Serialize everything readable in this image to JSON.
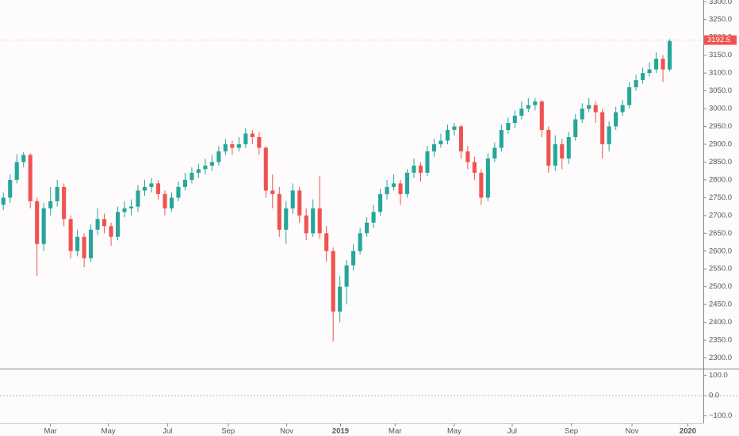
{
  "chart_data": [
    {
      "type": "candlestick",
      "x": [
        0,
        1,
        2,
        3,
        4,
        5,
        6,
        7,
        8,
        9,
        10,
        11,
        12,
        13,
        14,
        15,
        16,
        17,
        18,
        19,
        20,
        21,
        22,
        23,
        24,
        25,
        26,
        27,
        28,
        29,
        30,
        31,
        32,
        33,
        34,
        35,
        36,
        37,
        38,
        39,
        40,
        41,
        42,
        43,
        44,
        45,
        46,
        47,
        48,
        49,
        50,
        51,
        52,
        53,
        54,
        55,
        56,
        57,
        58,
        59,
        60,
        61,
        62,
        63,
        64,
        65,
        66,
        67,
        68,
        69,
        70,
        71,
        72,
        73,
        74,
        75,
        76,
        77,
        78,
        79,
        80,
        81,
        82,
        83,
        84,
        85,
        86,
        87,
        88,
        89,
        90,
        91,
        92,
        93,
        94,
        95,
        96,
        97,
        98,
        99
      ],
      "open": [
        2730,
        2750,
        2800,
        2850,
        2870,
        2740,
        2620,
        2720,
        2740,
        2780,
        2690,
        2600,
        2640,
        2580,
        2660,
        2690,
        2670,
        2640,
        2710,
        2720,
        2725,
        2770,
        2780,
        2790,
        2760,
        2720,
        2750,
        2780,
        2800,
        2820,
        2830,
        2840,
        2850,
        2880,
        2900,
        2890,
        2900,
        2930,
        2920,
        2890,
        2770,
        2760,
        2660,
        2720,
        2770,
        2700,
        2650,
        2720,
        2650,
        2600,
        2430,
        2500,
        2560,
        2600,
        2650,
        2680,
        2710,
        2760,
        2780,
        2790,
        2760,
        2820,
        2840,
        2820,
        2880,
        2900,
        2910,
        2940,
        2950,
        2880,
        2850,
        2820,
        2750,
        2860,
        2890,
        2940,
        2960,
        2980,
        3000,
        3010,
        3020,
        2940,
        2840,
        2900,
        2860,
        2920,
        2970,
        3000,
        3010,
        2990,
        2900,
        2950,
        2990,
        3010,
        3060,
        3080,
        3100,
        3110,
        3140,
        3110
      ],
      "high": [
        2765,
        2815,
        2872,
        2878,
        2875,
        2750,
        2735,
        2780,
        2800,
        2790,
        2700,
        2660,
        2650,
        2675,
        2720,
        2705,
        2680,
        2725,
        2740,
        2745,
        2785,
        2800,
        2805,
        2800,
        2770,
        2765,
        2795,
        2820,
        2835,
        2845,
        2860,
        2870,
        2895,
        2915,
        2910,
        2920,
        2945,
        2940,
        2935,
        2895,
        2815,
        2780,
        2740,
        2790,
        2780,
        2720,
        2745,
        2810,
        2670,
        2610,
        2530,
        2575,
        2620,
        2665,
        2695,
        2730,
        2775,
        2800,
        2815,
        2800,
        2830,
        2860,
        2850,
        2895,
        2915,
        2930,
        2955,
        2960,
        2955,
        2895,
        2865,
        2830,
        2875,
        2905,
        2955,
        2975,
        2995,
        3020,
        3030,
        3030,
        3025,
        2950,
        2925,
        2915,
        2935,
        2985,
        3015,
        3030,
        3020,
        3000,
        2965,
        3005,
        3025,
        3075,
        3095,
        3115,
        3130,
        3158,
        3150,
        3195
      ],
      "low": [
        2715,
        2735,
        2790,
        2835,
        2720,
        2530,
        2600,
        2700,
        2725,
        2670,
        2580,
        2585,
        2555,
        2570,
        2645,
        2650,
        2615,
        2630,
        2695,
        2700,
        2710,
        2755,
        2765,
        2745,
        2700,
        2710,
        2740,
        2770,
        2790,
        2805,
        2815,
        2825,
        2840,
        2870,
        2870,
        2880,
        2890,
        2900,
        2870,
        2750,
        2720,
        2640,
        2620,
        2705,
        2680,
        2630,
        2640,
        2635,
        2570,
        2346,
        2400,
        2450,
        2545,
        2590,
        2640,
        2665,
        2700,
        2745,
        2770,
        2730,
        2750,
        2805,
        2795,
        2810,
        2865,
        2890,
        2900,
        2925,
        2860,
        2830,
        2800,
        2730,
        2740,
        2850,
        2880,
        2930,
        2945,
        2970,
        2990,
        2995,
        2920,
        2820,
        2825,
        2830,
        2845,
        2910,
        2960,
        2990,
        2960,
        2860,
        2880,
        2940,
        2980,
        3000,
        3050,
        3070,
        3090,
        3100,
        3075,
        3105
      ],
      "close": [
        2750,
        2800,
        2850,
        2870,
        2740,
        2620,
        2720,
        2740,
        2780,
        2690,
        2600,
        2640,
        2580,
        2660,
        2690,
        2670,
        2640,
        2710,
        2720,
        2725,
        2770,
        2780,
        2790,
        2760,
        2720,
        2750,
        2780,
        2800,
        2820,
        2830,
        2840,
        2850,
        2880,
        2900,
        2890,
        2900,
        2930,
        2920,
        2890,
        2770,
        2760,
        2660,
        2720,
        2770,
        2700,
        2650,
        2720,
        2650,
        2600,
        2430,
        2500,
        2560,
        2600,
        2650,
        2680,
        2710,
        2760,
        2780,
        2790,
        2760,
        2820,
        2840,
        2820,
        2880,
        2900,
        2910,
        2940,
        2950,
        2880,
        2850,
        2820,
        2750,
        2860,
        2890,
        2940,
        2960,
        2980,
        3000,
        3010,
        3020,
        2940,
        2840,
        2900,
        2860,
        2920,
        2970,
        3000,
        3010,
        2990,
        2900,
        2950,
        2990,
        3010,
        3060,
        3080,
        3100,
        3110,
        3140,
        3110,
        3190
      ],
      "up_color": "#26a69a",
      "down_color": "#ef5350",
      "last_price": 3192.5,
      "last_price_color": "#ef5350",
      "xlim": [
        -0.5,
        104
      ],
      "ylim": [
        2270,
        3305
      ],
      "xticks": [
        {
          "value": 7.0,
          "label": "Mar"
        },
        {
          "value": 15.6,
          "label": "May"
        },
        {
          "value": 24.4,
          "label": "Jul"
        },
        {
          "value": 33.4,
          "label": "Sep"
        },
        {
          "value": 42.1,
          "label": "Nov"
        },
        {
          "value": 50.1,
          "label": "2019"
        },
        {
          "value": 58.2,
          "label": "Mar"
        },
        {
          "value": 67.0,
          "label": "May"
        },
        {
          "value": 75.6,
          "label": "Jul"
        },
        {
          "value": 84.4,
          "label": "Sep"
        },
        {
          "value": 93.4,
          "label": "Nov"
        },
        {
          "value": 101.7,
          "label": "2020"
        }
      ],
      "yticks": [
        {
          "value": 2300,
          "label": "2300.0"
        },
        {
          "value": 2350,
          "label": "2350.0"
        },
        {
          "value": 2400,
          "label": "2400.0"
        },
        {
          "value": 2450,
          "label": "2450.0"
        },
        {
          "value": 2500,
          "label": "2500.0"
        },
        {
          "value": 2550,
          "label": "2550.0"
        },
        {
          "value": 2600,
          "label": "2600.0"
        },
        {
          "value": 2650,
          "label": "2650.0"
        },
        {
          "value": 2700,
          "label": "2700.0"
        },
        {
          "value": 2750,
          "label": "2750.0"
        },
        {
          "value": 2800,
          "label": "2800.0"
        },
        {
          "value": 2850,
          "label": "2850.0"
        },
        {
          "value": 2900,
          "label": "2900.0"
        },
        {
          "value": 2950,
          "label": "2950.0"
        },
        {
          "value": 3000,
          "label": "3000.0"
        },
        {
          "value": 3050,
          "label": "3050.0"
        },
        {
          "value": 3100,
          "label": "3100.0"
        },
        {
          "value": 3150,
          "label": "3150.0"
        },
        {
          "value": 3200,
          "label": "3200.0"
        },
        {
          "value": 3250,
          "label": "3250.0"
        },
        {
          "value": 3300,
          "label": "3300.0"
        }
      ]
    },
    {
      "type": "indicator",
      "ylim": [
        -137,
        130
      ],
      "yticks": [
        {
          "value": 100,
          "label": "100.0"
        },
        {
          "value": 0,
          "label": "0.0"
        },
        {
          "value": -100,
          "label": "−100.0"
        }
      ],
      "zero_line": true
    }
  ]
}
